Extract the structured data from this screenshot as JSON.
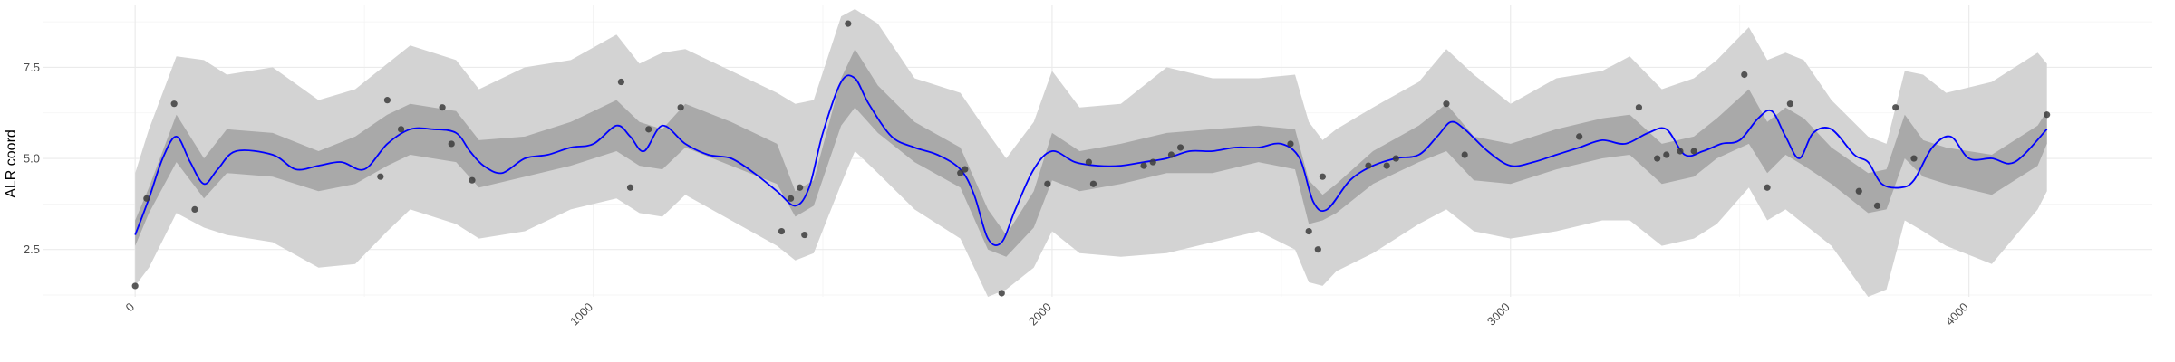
{
  "chart_data": {
    "type": "line",
    "title": "",
    "xlabel": "",
    "ylabel": "ALR coord",
    "xlim": [
      -200,
      4400
    ],
    "ylim": [
      1.2,
      9.2
    ],
    "x_ticks": [
      0,
      1000,
      2000,
      3000,
      4000
    ],
    "x_tick_labels": [
      "0",
      "1000",
      "2000",
      "3000",
      "4000"
    ],
    "x_minor_ticks": [
      500,
      1500,
      2500,
      3500
    ],
    "y_ticks": [
      2.5,
      5.0,
      7.5
    ],
    "y_tick_labels": [
      "2.5",
      "5.0",
      "7.5"
    ],
    "y_minor_ticks": [
      1.25,
      3.75,
      6.25,
      8.75
    ],
    "grid": true,
    "colors": {
      "mean_line": "#0000ff",
      "inner_band": "#a9a9a9",
      "outer_band": "#d3d3d3",
      "points": "#3c3c3c"
    },
    "series": [
      {
        "type": "band-outer",
        "x": [
          0,
          30,
          90,
          150,
          200,
          300,
          400,
          480,
          550,
          600,
          700,
          750,
          850,
          950,
          1050,
          1100,
          1150,
          1200,
          1300,
          1400,
          1440,
          1480,
          1540,
          1570,
          1620,
          1700,
          1800,
          1860,
          1900,
          1960,
          2000,
          2060,
          2150,
          2250,
          2350,
          2450,
          2530,
          2560,
          2590,
          2620,
          2700,
          2800,
          2860,
          2920,
          3000,
          3100,
          3200,
          3260,
          3330,
          3400,
          3450,
          3520,
          3560,
          3600,
          3640,
          3700,
          3780,
          3820,
          3860,
          3900,
          3950,
          4050,
          4150,
          4170
        ],
        "low": [
          1.5,
          2.0,
          3.5,
          3.1,
          2.9,
          2.7,
          2.0,
          2.1,
          3.0,
          3.6,
          3.2,
          2.8,
          3.0,
          3.6,
          3.9,
          3.5,
          3.4,
          4.0,
          3.3,
          2.6,
          2.2,
          2.4,
          4.3,
          5.2,
          4.6,
          3.6,
          2.8,
          1.2,
          1.4,
          2.0,
          3.0,
          2.4,
          2.3,
          2.4,
          2.7,
          3.0,
          2.5,
          1.6,
          1.5,
          1.9,
          2.4,
          3.2,
          3.6,
          3.0,
          2.8,
          3.0,
          3.3,
          3.3,
          2.6,
          2.8,
          3.2,
          4.2,
          3.3,
          3.6,
          3.2,
          2.6,
          1.2,
          1.4,
          3.3,
          3.0,
          2.6,
          2.1,
          3.6,
          4.1
        ],
        "high": [
          4.6,
          5.8,
          7.8,
          7.7,
          7.3,
          7.5,
          6.6,
          6.9,
          7.6,
          8.1,
          7.7,
          6.9,
          7.5,
          7.7,
          8.4,
          7.6,
          7.9,
          8.0,
          7.4,
          6.8,
          6.5,
          6.6,
          8.9,
          9.1,
          8.7,
          7.2,
          6.8,
          5.7,
          5.0,
          6.0,
          7.4,
          6.4,
          6.5,
          7.5,
          7.2,
          7.2,
          7.3,
          6.0,
          5.5,
          5.8,
          6.4,
          7.1,
          8.0,
          7.3,
          6.5,
          7.2,
          7.4,
          7.8,
          6.9,
          7.2,
          7.7,
          8.6,
          7.7,
          7.9,
          7.7,
          6.6,
          5.6,
          5.4,
          7.4,
          7.3,
          6.8,
          7.1,
          7.9,
          7.6
        ]
      },
      {
        "type": "band-inner",
        "x": [
          0,
          30,
          90,
          150,
          200,
          300,
          400,
          480,
          550,
          600,
          700,
          750,
          850,
          950,
          1050,
          1100,
          1150,
          1200,
          1300,
          1400,
          1440,
          1480,
          1540,
          1570,
          1620,
          1700,
          1800,
          1860,
          1900,
          1960,
          2000,
          2060,
          2150,
          2250,
          2350,
          2450,
          2530,
          2560,
          2590,
          2620,
          2700,
          2800,
          2860,
          2920,
          3000,
          3100,
          3200,
          3260,
          3330,
          3400,
          3450,
          3520,
          3560,
          3600,
          3640,
          3700,
          3780,
          3820,
          3860,
          3900,
          3950,
          4050,
          4150,
          4170
        ],
        "low": [
          2.6,
          3.5,
          4.9,
          3.9,
          4.6,
          4.5,
          4.1,
          4.3,
          4.8,
          5.1,
          4.9,
          4.2,
          4.5,
          4.8,
          5.2,
          4.8,
          4.7,
          5.3,
          4.8,
          4.3,
          3.4,
          3.7,
          5.9,
          6.4,
          5.7,
          4.9,
          4.2,
          2.5,
          2.3,
          3.1,
          4.4,
          4.1,
          4.3,
          4.6,
          4.6,
          4.9,
          4.7,
          3.2,
          3.3,
          3.5,
          4.3,
          4.9,
          5.2,
          4.4,
          4.3,
          4.7,
          5.0,
          5.1,
          4.3,
          4.5,
          5.0,
          5.4,
          4.6,
          5.1,
          4.8,
          4.3,
          3.5,
          3.6,
          5.0,
          4.5,
          4.3,
          4.0,
          4.8,
          5.4
        ],
        "high": [
          3.3,
          4.2,
          6.2,
          5.0,
          5.8,
          5.7,
          5.2,
          5.6,
          6.2,
          6.5,
          6.3,
          5.5,
          5.6,
          6.0,
          6.6,
          6.0,
          5.8,
          6.5,
          6.0,
          5.4,
          4.1,
          4.4,
          7.2,
          8.0,
          7.0,
          6.0,
          5.3,
          3.6,
          2.9,
          4.1,
          5.7,
          5.2,
          5.4,
          5.7,
          5.8,
          5.9,
          5.8,
          4.4,
          4.0,
          4.3,
          5.2,
          5.9,
          6.5,
          5.6,
          5.4,
          5.8,
          6.1,
          6.2,
          5.4,
          5.6,
          6.1,
          6.9,
          6.0,
          6.4,
          6.1,
          5.3,
          4.6,
          4.7,
          6.2,
          5.5,
          5.3,
          5.1,
          5.9,
          6.3
        ]
      },
      {
        "type": "mean",
        "x": [
          0,
          30,
          60,
          90,
          120,
          150,
          180,
          220,
          300,
          350,
          400,
          450,
          500,
          550,
          600,
          650,
          700,
          730,
          760,
          800,
          850,
          900,
          950,
          1000,
          1050,
          1080,
          1110,
          1150,
          1200,
          1250,
          1300,
          1350,
          1400,
          1440,
          1470,
          1500,
          1540,
          1570,
          1600,
          1650,
          1700,
          1750,
          1800,
          1830,
          1860,
          1890,
          1920,
          1960,
          2000,
          2050,
          2100,
          2150,
          2200,
          2250,
          2300,
          2350,
          2400,
          2450,
          2500,
          2540,
          2570,
          2600,
          2650,
          2700,
          2750,
          2800,
          2840,
          2870,
          2900,
          2950,
          3000,
          3050,
          3100,
          3150,
          3200,
          3250,
          3300,
          3340,
          3380,
          3420,
          3460,
          3500,
          3540,
          3570,
          3600,
          3630,
          3660,
          3700,
          3750,
          3780,
          3810,
          3850,
          3880,
          3920,
          3960,
          4000,
          4050,
          4100,
          4170
        ],
        "y": [
          2.9,
          3.9,
          5.0,
          5.6,
          4.9,
          4.3,
          4.7,
          5.2,
          5.1,
          4.7,
          4.8,
          4.9,
          4.7,
          5.4,
          5.8,
          5.8,
          5.7,
          5.2,
          4.8,
          4.6,
          5.0,
          5.1,
          5.3,
          5.4,
          5.9,
          5.6,
          5.2,
          5.9,
          5.4,
          5.1,
          5.0,
          4.6,
          4.1,
          3.7,
          4.2,
          5.7,
          7.1,
          7.2,
          6.5,
          5.6,
          5.3,
          5.1,
          4.7,
          4.0,
          2.8,
          2.7,
          3.6,
          4.7,
          5.2,
          4.9,
          4.8,
          4.8,
          4.9,
          5.0,
          5.2,
          5.2,
          5.3,
          5.3,
          5.4,
          5.0,
          3.8,
          3.6,
          4.4,
          4.8,
          5.0,
          5.1,
          5.6,
          6.0,
          5.8,
          5.2,
          4.8,
          4.9,
          5.1,
          5.3,
          5.5,
          5.4,
          5.7,
          5.8,
          5.1,
          5.2,
          5.4,
          5.5,
          6.1,
          6.3,
          5.6,
          5.0,
          5.7,
          5.8,
          5.1,
          4.9,
          4.3,
          4.2,
          4.4,
          5.3,
          5.6,
          5.0,
          5.0,
          4.9,
          5.8
        ],
        "name": ""
      },
      {
        "type": "points",
        "x": [
          0,
          25,
          85,
          130,
          535,
          550,
          580,
          670,
          690,
          735,
          1060,
          1080,
          1120,
          1190,
          1410,
          1430,
          1450,
          1460,
          1555,
          1800,
          1810,
          1890,
          1990,
          2080,
          2090,
          2200,
          2220,
          2260,
          2280,
          2520,
          2560,
          2580,
          2590,
          2690,
          2730,
          2750,
          2860,
          2900,
          3150,
          3280,
          3320,
          3340,
          3370,
          3400,
          3510,
          3560,
          3610,
          3760,
          3800,
          3840,
          3880,
          4170
        ],
        "y": [
          1.5,
          3.9,
          6.5,
          3.6,
          4.5,
          6.6,
          5.8,
          6.4,
          5.4,
          4.4,
          7.1,
          4.2,
          5.8,
          6.4,
          3.0,
          3.9,
          4.2,
          2.9,
          8.7,
          4.6,
          4.7,
          1.3,
          4.3,
          4.9,
          4.3,
          4.8,
          4.9,
          5.1,
          5.3,
          5.4,
          3.0,
          2.5,
          4.5,
          4.8,
          4.8,
          5.0,
          6.5,
          5.1,
          5.6,
          6.4,
          5.0,
          5.1,
          5.2,
          5.2,
          7.3,
          4.2,
          6.5,
          4.1,
          3.7,
          6.4,
          5.0,
          6.2
        ]
      }
    ]
  }
}
